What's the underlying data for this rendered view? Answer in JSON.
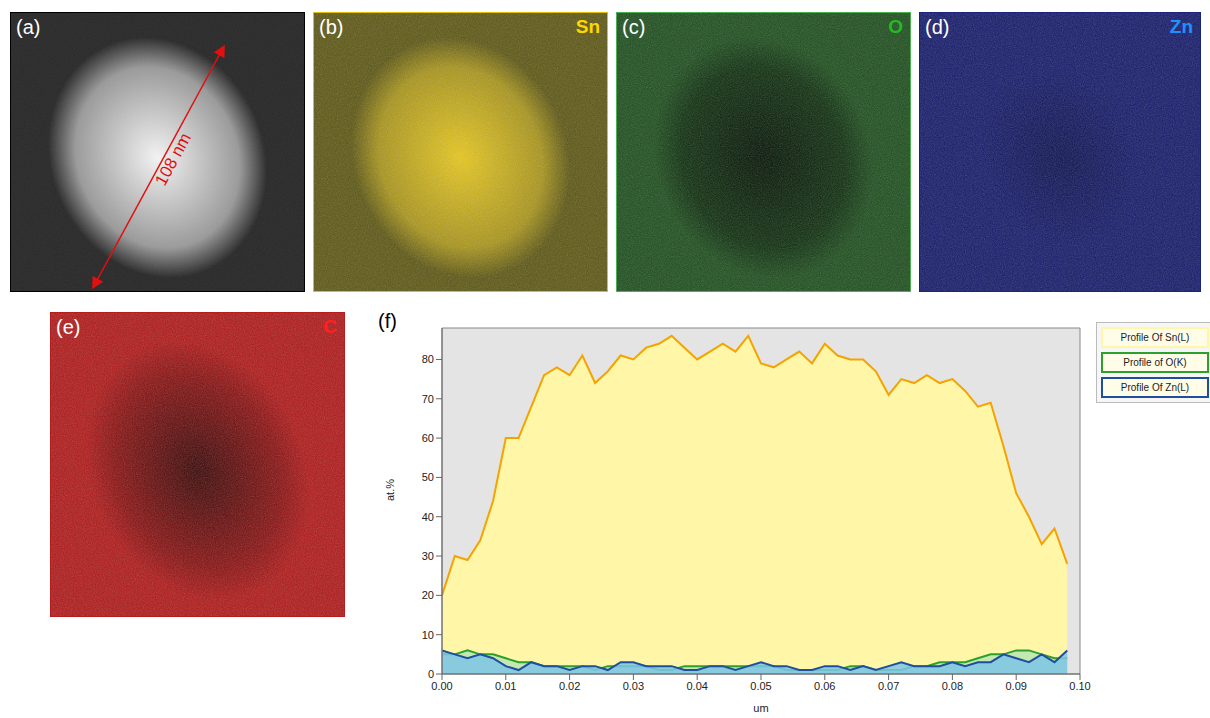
{
  "panels": [
    {
      "label": "(a)",
      "annotation": "108 nm"
    },
    {
      "label": "(b)",
      "element": "Sn"
    },
    {
      "label": "(c)",
      "element": "O"
    },
    {
      "label": "(d)",
      "element": "Zn"
    },
    {
      "label": "(e)",
      "element": "C"
    },
    {
      "label": "(f)"
    }
  ],
  "chart_data": {
    "type": "area",
    "xlabel": "um",
    "ylabel": "at.%",
    "x": [
      0,
      0.002,
      0.004,
      0.006,
      0.008,
      0.01,
      0.012,
      0.014,
      0.016,
      0.018,
      0.02,
      0.022,
      0.024,
      0.026,
      0.028,
      0.03,
      0.032,
      0.034,
      0.036,
      0.038,
      0.04,
      0.042,
      0.044,
      0.046,
      0.048,
      0.05,
      0.052,
      0.054,
      0.056,
      0.058,
      0.06,
      0.062,
      0.064,
      0.066,
      0.068,
      0.07,
      0.072,
      0.074,
      0.076,
      0.078,
      0.08,
      0.082,
      0.084,
      0.086,
      0.088,
      0.09,
      0.092,
      0.094,
      0.096,
      0.098
    ],
    "series": [
      {
        "name": "Profile Of Sn(L)",
        "color": "#f5a300",
        "values": [
          20,
          30,
          29,
          34,
          44,
          60,
          60,
          68,
          76,
          78,
          76,
          81,
          74,
          77,
          81,
          80,
          83,
          84,
          86,
          83,
          80,
          82,
          84,
          82,
          86,
          79,
          78,
          80,
          82,
          79,
          84,
          81,
          80,
          80,
          77,
          71,
          75,
          74,
          76,
          74,
          75,
          72,
          68,
          69,
          58,
          46,
          40,
          33,
          37,
          28
        ]
      },
      {
        "name": "Profile of O(K)",
        "color": "#2ca02c",
        "values": [
          5,
          5,
          6,
          5,
          5,
          4,
          3,
          3,
          2,
          2,
          2,
          2,
          1,
          2,
          2,
          2,
          2,
          1,
          1,
          2,
          2,
          2,
          2,
          2,
          2,
          2,
          2,
          1,
          1,
          1,
          1,
          1,
          2,
          2,
          1,
          1,
          1,
          2,
          2,
          3,
          3,
          3,
          4,
          5,
          5,
          6,
          6,
          5,
          4,
          4
        ]
      },
      {
        "name": "Profile Of Zn(L)",
        "color": "#1f4e9c",
        "values": [
          6,
          5,
          4,
          5,
          4,
          2,
          1,
          3,
          2,
          2,
          1,
          2,
          2,
          1,
          3,
          3,
          2,
          2,
          2,
          1,
          1,
          2,
          2,
          1,
          2,
          3,
          2,
          2,
          1,
          1,
          2,
          2,
          1,
          2,
          1,
          2,
          3,
          2,
          2,
          2,
          3,
          2,
          3,
          3,
          5,
          4,
          3,
          5,
          3,
          6
        ]
      }
    ],
    "xlim": [
      0,
      0.1
    ],
    "xticks": [
      {
        "value": 0,
        "label": "0.00"
      },
      {
        "value": 0.01,
        "label": "0.01"
      },
      {
        "value": 0.02,
        "label": "0.02"
      },
      {
        "value": 0.03,
        "label": "0.03"
      },
      {
        "value": 0.04,
        "label": "0.04"
      },
      {
        "value": 0.05,
        "label": "0.05"
      },
      {
        "value": 0.06,
        "label": "0.06"
      },
      {
        "value": 0.07,
        "label": "0.07"
      },
      {
        "value": 0.08,
        "label": "0.08"
      },
      {
        "value": 0.09,
        "label": "0.09"
      },
      {
        "value": 0.1,
        "label": "0.10"
      }
    ],
    "ylim": [
      0,
      88
    ],
    "yticks": [
      0,
      10,
      20,
      30,
      40,
      50,
      60,
      70,
      80
    ],
    "grid": false,
    "legend": "right"
  }
}
